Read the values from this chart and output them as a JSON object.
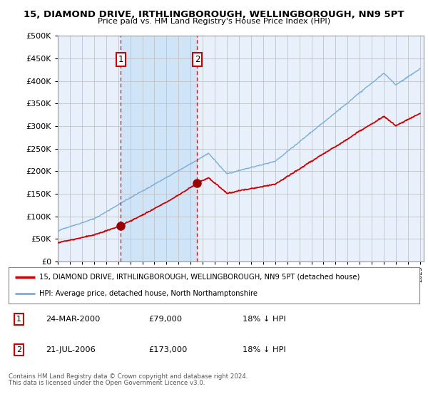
{
  "title1": "15, DIAMOND DRIVE, IRTHLINGBOROUGH, WELLINGBOROUGH, NN9 5PT",
  "title2": "Price paid vs. HM Land Registry's House Price Index (HPI)",
  "legend_line1": "15, DIAMOND DRIVE, IRTHLINGBOROUGH, WELLINGBOROUGH, NN9 5PT (detached house)",
  "legend_line2": "HPI: Average price, detached house, North Northamptonshire",
  "annotation1_date": "24-MAR-2000",
  "annotation1_price": "£79,000",
  "annotation1_hpi": "18% ↓ HPI",
  "annotation2_date": "21-JUL-2006",
  "annotation2_price": "£173,000",
  "annotation2_hpi": "18% ↓ HPI",
  "footer1": "Contains HM Land Registry data © Crown copyright and database right 2024.",
  "footer2": "This data is licensed under the Open Government Licence v3.0.",
  "hpi_color": "#7aadda",
  "price_color": "#cc0000",
  "dot_color": "#990000",
  "background_color": "#ffffff",
  "plot_bg_color": "#e8f0fb",
  "shade_color": "#d0e4f7",
  "grid_color": "#bbbbbb",
  "ylim": [
    0,
    500000
  ],
  "yticks": [
    0,
    50000,
    100000,
    150000,
    200000,
    250000,
    300000,
    350000,
    400000,
    450000,
    500000
  ],
  "year_start": 1995,
  "year_end": 2025,
  "annotation1_year": 2000.22,
  "annotation2_year": 2006.54,
  "purchase1_year": 2000.22,
  "purchase1_price": 79000,
  "purchase2_year": 2006.54,
  "purchase2_price": 173000
}
